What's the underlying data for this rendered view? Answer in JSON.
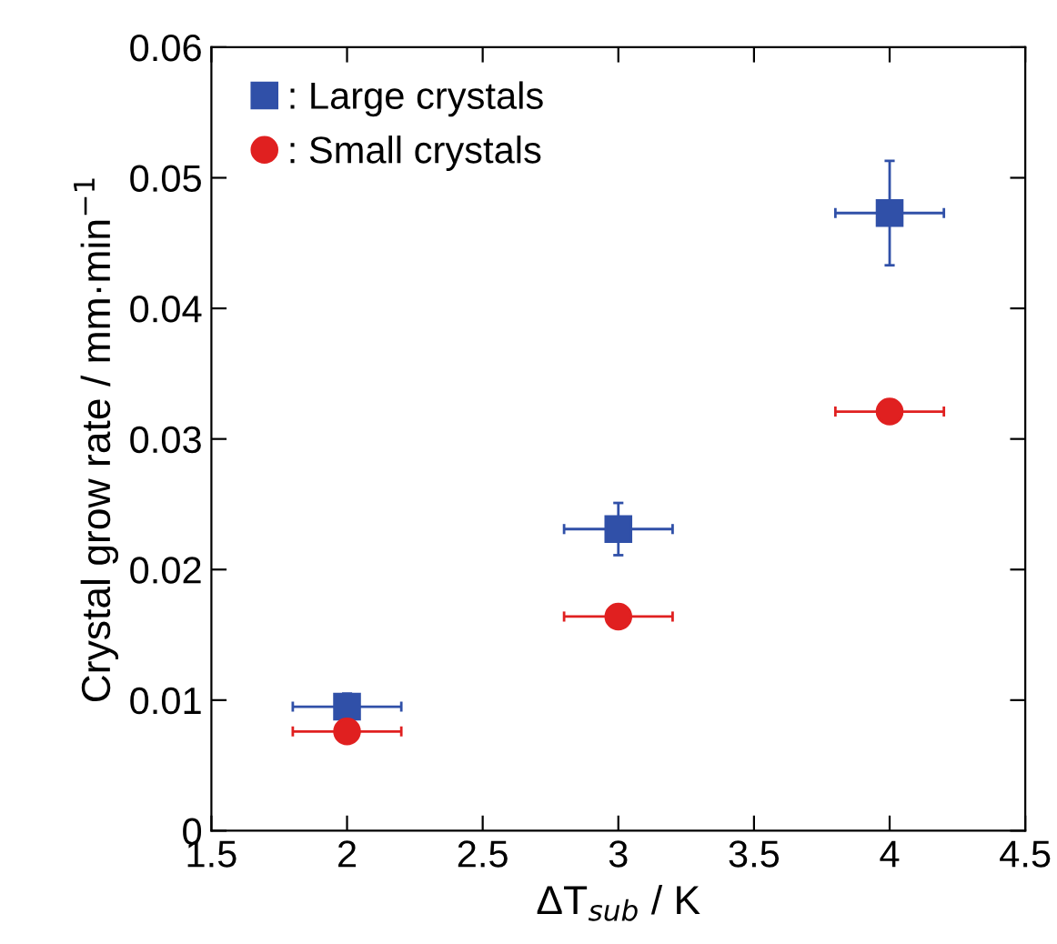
{
  "chart_data": {
    "type": "scatter",
    "xlabel": "ΔT$_{sub}$ / K",
    "ylabel": "Crystal grow rate / mm·min$^{−1}$",
    "xlim": [
      1.5,
      4.5
    ],
    "xticks": [
      1.5,
      2,
      2.5,
      3,
      3.5,
      4,
      4.5
    ],
    "ylim": [
      0,
      0.06
    ],
    "yticks": [
      0,
      0.01,
      0.02,
      0.03,
      0.04,
      0.05,
      0.06
    ],
    "grid": false,
    "legend": "top left",
    "series": [
      {
        "name": ": Large crystals",
        "color": "#3050a8",
        "marker": "square",
        "x": [
          2,
          3,
          4
        ],
        "values": [
          0.0095,
          0.0231,
          0.0473
        ],
        "errors": [
          0.001,
          0.002,
          0.004
        ],
        "xerrors": [
          0.2,
          0.2,
          0.2
        ]
      },
      {
        "name": ": Small crystals",
        "color": "#e02020",
        "marker": "circle",
        "x": [
          2,
          3,
          4
        ],
        "values": [
          0.0076,
          0.0164,
          0.0321
        ],
        "xerrors": [
          0.2,
          0.2,
          0.2
        ]
      }
    ]
  }
}
